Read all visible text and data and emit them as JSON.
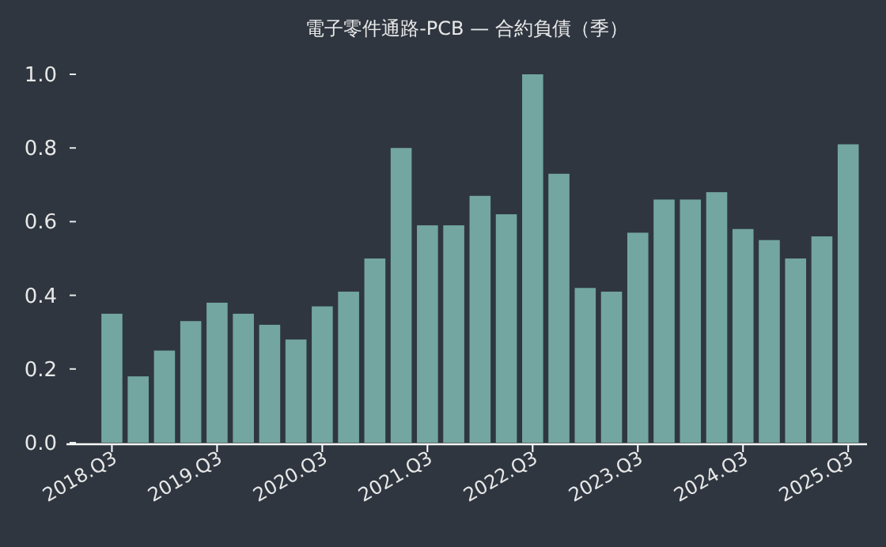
{
  "chart_data": {
    "type": "bar",
    "title": "電子零件通路-PCB — 合約負債（季）",
    "categories": [
      "2018.Q3",
      null,
      null,
      null,
      "2019.Q3",
      null,
      null,
      null,
      "2020.Q3",
      null,
      null,
      null,
      "2021.Q3",
      null,
      null,
      null,
      "2022.Q3",
      null,
      null,
      null,
      "2023.Q3",
      null,
      null,
      null,
      "2024.Q3",
      null,
      null,
      null,
      "2025.Q3"
    ],
    "values": [
      0.35,
      0.18,
      0.25,
      0.33,
      0.38,
      0.35,
      0.32,
      0.28,
      0.37,
      0.41,
      0.5,
      0.8,
      0.59,
      0.59,
      0.67,
      0.62,
      1.0,
      0.73,
      0.42,
      0.41,
      0.57,
      0.66,
      0.66,
      0.68,
      0.58,
      0.55,
      0.5,
      0.56,
      0.81
    ],
    "color": "#73a6a0",
    "ylim": [
      0,
      1.0
    ],
    "yticks": [
      {
        "value": 0,
        "label": "0.0"
      },
      {
        "value": 0.2,
        "label": "0.2"
      },
      {
        "value": 0.4,
        "label": "0.4"
      },
      {
        "value": 0.6,
        "label": "0.6"
      },
      {
        "value": 0.8,
        "label": "0.8"
      },
      {
        "value": 1.0,
        "label": "1.0"
      }
    ],
    "grid": false
  }
}
